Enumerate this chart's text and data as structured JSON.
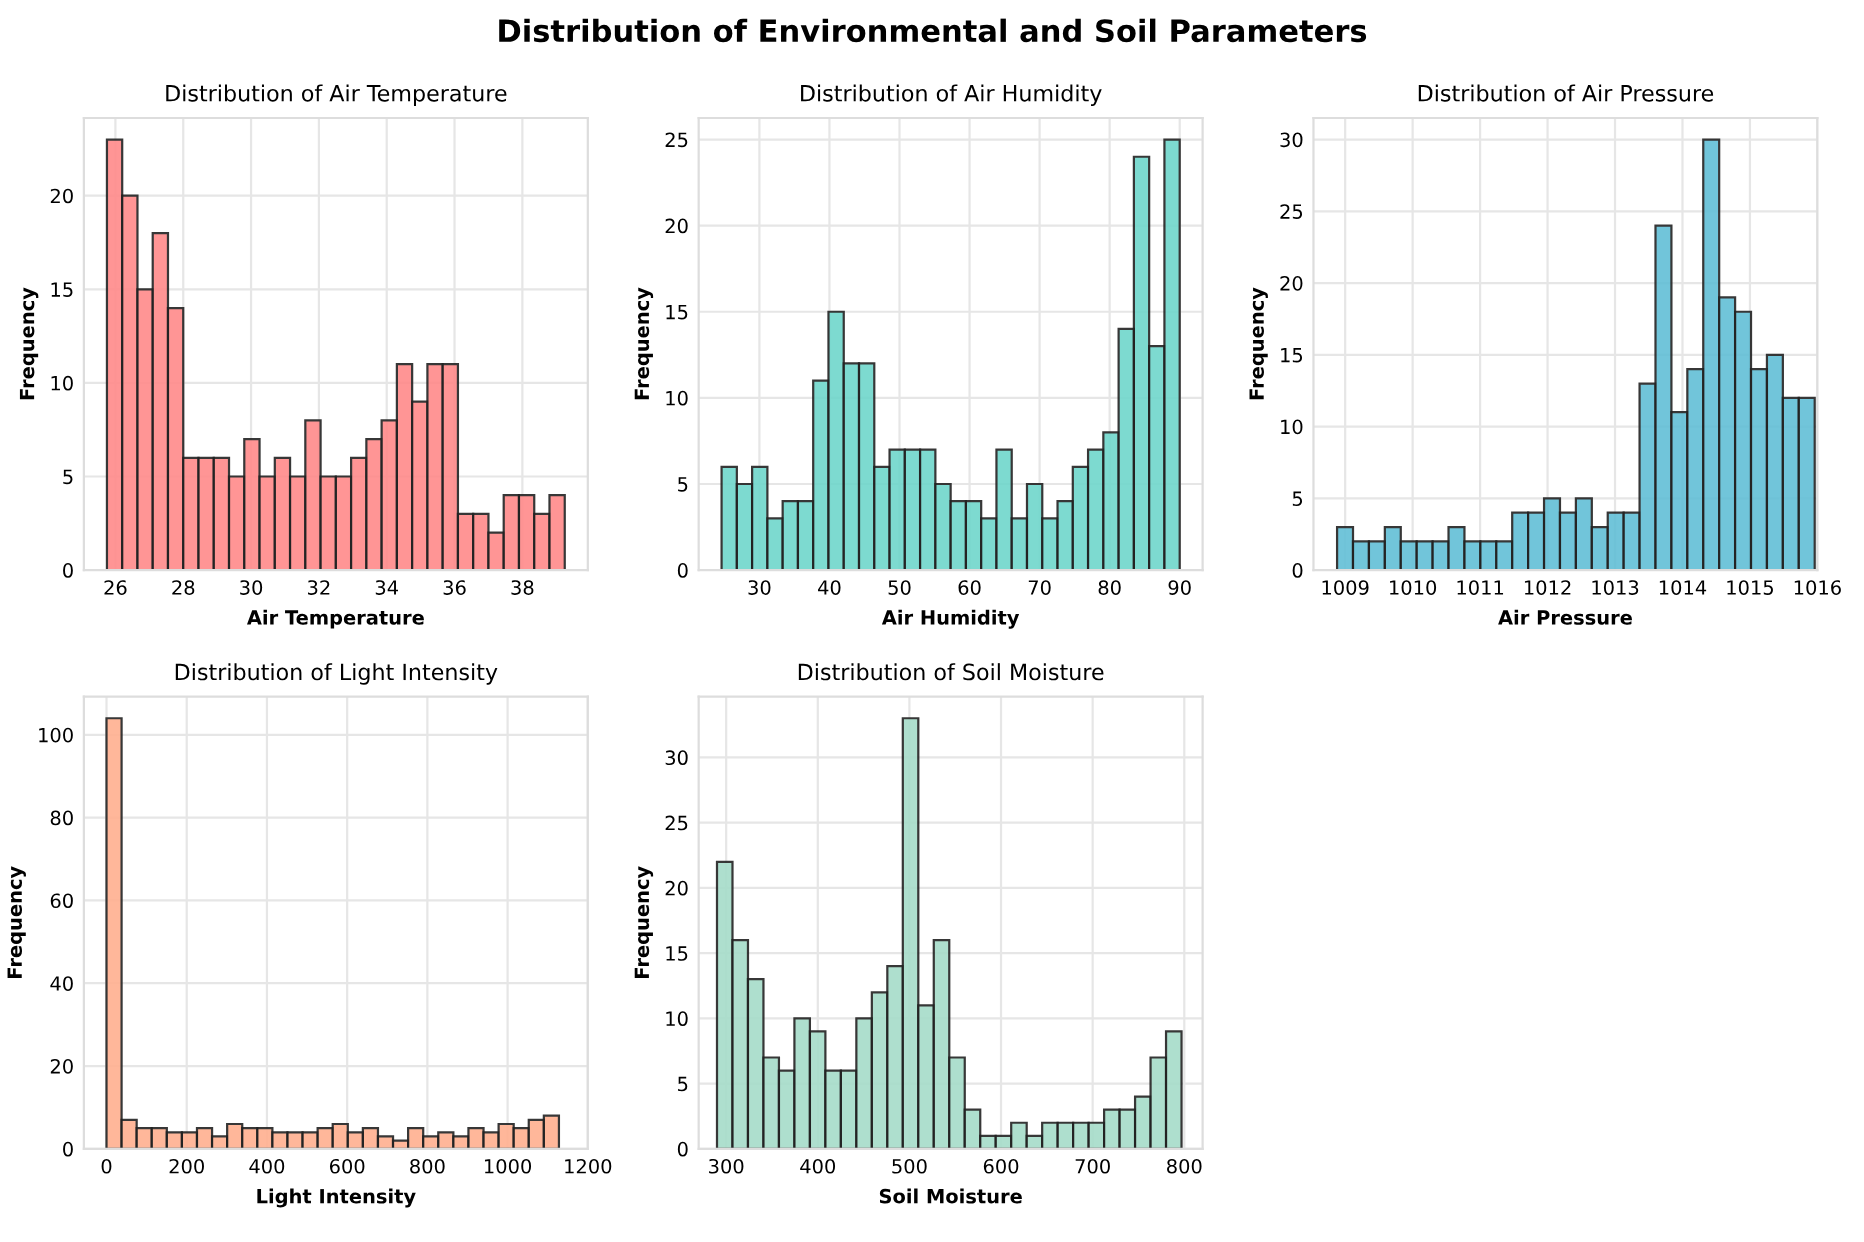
{
  "chart_data": [
    {
      "type": "histogram",
      "title": "Distribution of Air Temperature",
      "xlabel": "Air Temperature",
      "ylabel": "Frequency",
      "color": "#ff8a8a",
      "grid": true,
      "bins": [
        25.75,
        26.2,
        26.65,
        27.1,
        27.55,
        28.0,
        28.45,
        28.9,
        29.35,
        29.8,
        30.25,
        30.7,
        31.15,
        31.6,
        32.05,
        32.5,
        32.95,
        33.4,
        33.85,
        34.3,
        34.75,
        35.2,
        35.65,
        36.1,
        36.55,
        37.0,
        37.45,
        37.9,
        38.35,
        38.8,
        39.25
      ],
      "values": [
        23,
        20,
        15,
        18,
        14,
        6,
        6,
        6,
        5,
        7,
        5,
        6,
        5,
        8,
        5,
        5,
        6,
        7,
        8,
        11,
        9,
        11,
        11,
        3,
        3,
        2,
        4,
        4,
        3,
        4
      ],
      "xlim": [
        25.07,
        39.93
      ],
      "xticks": [
        26,
        28,
        30,
        32,
        34,
        36,
        38
      ],
      "ylim": [
        0,
        24.15
      ],
      "yticks": [
        0,
        5,
        10,
        15,
        20
      ]
    },
    {
      "type": "histogram",
      "title": "Distribution of Air Humidity",
      "xlabel": "Air Humidity",
      "ylabel": "Frequency",
      "color": "#6fd6cb",
      "grid": true,
      "bins": [
        24.6,
        26.78,
        28.96,
        31.14,
        33.32,
        35.5,
        37.68,
        39.86,
        42.04,
        44.22,
        46.4,
        48.58,
        50.76,
        52.94,
        55.12,
        57.3,
        59.48,
        61.66,
        63.84,
        66.02,
        68.2,
        70.38,
        72.56,
        74.74,
        76.92,
        79.1,
        81.28,
        83.46,
        85.64,
        87.82,
        90.0
      ],
      "values": [
        6,
        5,
        6,
        3,
        4,
        4,
        11,
        15,
        12,
        12,
        6,
        7,
        7,
        7,
        5,
        4,
        4,
        3,
        7,
        3,
        5,
        3,
        4,
        6,
        7,
        8,
        14,
        24,
        13,
        25
      ],
      "xlim": [
        21.33,
        93.27
      ],
      "xticks": [
        30,
        40,
        50,
        60,
        70,
        80,
        90
      ],
      "ylim": [
        0,
        26.25
      ],
      "yticks": [
        0,
        5,
        10,
        15,
        20,
        25
      ]
    },
    {
      "type": "histogram",
      "title": "Distribution of Air Pressure",
      "xlabel": "Air Pressure",
      "ylabel": "Frequency",
      "color": "#62bfd6",
      "grid": true,
      "bins": [
        1008.88,
        1009.116,
        1009.352,
        1009.588,
        1009.824,
        1010.06,
        1010.296,
        1010.532,
        1010.768,
        1011.004,
        1011.24,
        1011.476,
        1011.712,
        1011.948,
        1012.184,
        1012.42,
        1012.656,
        1012.892,
        1013.128,
        1013.364,
        1013.6,
        1013.836,
        1014.072,
        1014.308,
        1014.544,
        1014.78,
        1015.016,
        1015.252,
        1015.488,
        1015.724,
        1015.96
      ],
      "values": [
        3,
        2,
        2,
        3,
        2,
        2,
        2,
        3,
        2,
        2,
        2,
        4,
        4,
        5,
        4,
        5,
        3,
        4,
        4,
        13,
        24,
        11,
        14,
        30,
        19,
        18,
        14,
        15,
        12,
        12
      ],
      "xlim": [
        1008.53,
        1016.0
      ],
      "xticks": [
        1009,
        1010,
        1011,
        1012,
        1013,
        1014,
        1015,
        1016
      ],
      "ylim": [
        0,
        31.5
      ],
      "yticks": [
        0,
        5,
        10,
        15,
        20,
        25,
        30
      ]
    },
    {
      "type": "histogram",
      "title": "Distribution of Light Intensity",
      "xlabel": "Light Intensity",
      "ylabel": "Frequency",
      "color": "#ffb090",
      "grid": true,
      "bins": [
        0,
        37.6,
        75.2,
        112.8,
        150.4,
        188,
        225.6,
        263.2,
        300.8,
        338.4,
        376,
        413.6,
        451.2,
        488.8,
        526.4,
        564,
        601.6,
        639.2,
        676.8,
        714.4,
        752,
        789.6,
        827.2,
        864.8,
        902.4,
        940,
        977.6,
        1015.2,
        1052.8,
        1090.4,
        1128
      ],
      "values": [
        104,
        7,
        5,
        5,
        4,
        4,
        5,
        3,
        6,
        5,
        5,
        4,
        4,
        4,
        5,
        6,
        4,
        5,
        3,
        2,
        5,
        3,
        4,
        3,
        5,
        4,
        6,
        5,
        7,
        8
      ],
      "xlim": [
        -56.4,
        1200
      ],
      "xticks": [
        0,
        200,
        400,
        600,
        800,
        1000,
        1200
      ],
      "ylim": [
        0,
        109.2
      ],
      "yticks": [
        0,
        20,
        40,
        60,
        80,
        100
      ]
    },
    {
      "type": "histogram",
      "title": "Distribution of Soil Moisture",
      "xlabel": "Soil Moisture",
      "ylabel": "Frequency",
      "color": "#a6dcc9",
      "grid": true,
      "bins": [
        290,
        306.9,
        323.8,
        340.7,
        357.6,
        374.5,
        391.4,
        408.3,
        425.2,
        442.1,
        459,
        475.9,
        492.8,
        509.7,
        526.6,
        543.5,
        560.4,
        577.3,
        594.2,
        611.1,
        628,
        644.9,
        661.8,
        678.7,
        695.6,
        712.5,
        729.4,
        746.3,
        763.2,
        780.1,
        797
      ],
      "values": [
        22,
        16,
        13,
        7,
        6,
        10,
        9,
        6,
        6,
        10,
        12,
        14,
        33,
        11,
        16,
        7,
        3,
        1,
        1,
        2,
        1,
        2,
        2,
        2,
        2,
        3,
        3,
        4,
        7,
        9
      ],
      "xlim": [
        270,
        820
      ],
      "xticks": [
        300,
        400,
        500,
        600,
        700,
        800
      ],
      "ylim": [
        0,
        34.65
      ],
      "yticks": [
        0,
        5,
        10,
        15,
        20,
        25,
        30
      ]
    },
    {
      "type": "other",
      "title": "Distribution of Environmental and Soil Parameters"
    }
  ]
}
